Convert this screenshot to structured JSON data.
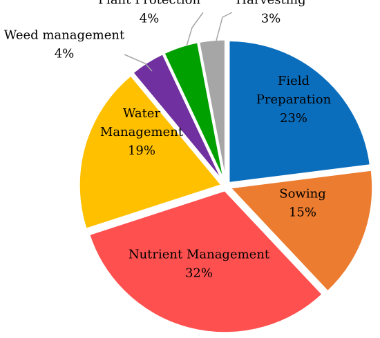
{
  "chart_data": {
    "type": "pie",
    "title": "",
    "legend": "none",
    "slices": [
      {
        "label": "Field Preparation",
        "lines": [
          "Field",
          "Preparation"
        ],
        "value": 23,
        "value_label": "23%",
        "color": "#0A6EBD"
      },
      {
        "label": "Sowing",
        "lines": [
          "Sowing"
        ],
        "value": 15,
        "value_label": "15%",
        "color": "#EC7C30"
      },
      {
        "label": "Nutrient Management",
        "lines": [
          "Nutrient Management"
        ],
        "value": 32,
        "value_label": "32%",
        "color": "#FF5050"
      },
      {
        "label": "Water Management",
        "lines": [
          "Water",
          "Management"
        ],
        "value": 19,
        "value_label": "19%",
        "color": "#FFC000"
      },
      {
        "label": "Weed management",
        "lines": [
          "Weed management"
        ],
        "value": 4,
        "value_label": "4%",
        "color": "#7030A0"
      },
      {
        "label": "Plant Protection",
        "lines": [
          "Plant Protection"
        ],
        "value": 4,
        "value_label": "4%",
        "color": "#00A000"
      },
      {
        "label": "Harvesting",
        "lines": [
          "Harvesting"
        ],
        "value": 3,
        "value_label": "3%",
        "color": "#A6A6A6"
      }
    ]
  }
}
